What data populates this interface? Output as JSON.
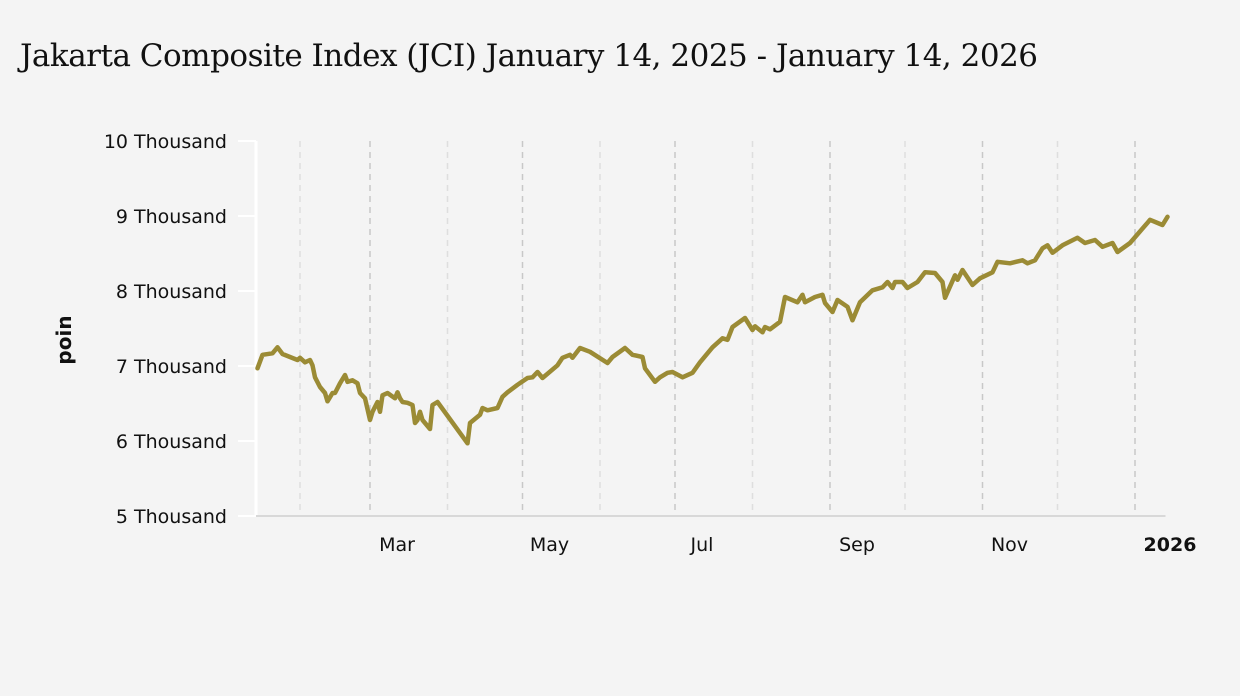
{
  "chart_data": {
    "type": "line",
    "title": "Jakarta Composite Index (JCI) January 14, 2025 - January 14, 2026",
    "xlabel": "",
    "ylabel": "poin",
    "x_units": "days since 2025-01-01",
    "xlim": [
      13,
      378
    ],
    "ylim": [
      5000,
      10000
    ],
    "y_ticks": [
      5000,
      6000,
      7000,
      8000,
      9000,
      10000
    ],
    "y_tick_labels": [
      "5 Thousand",
      "6 Thousand",
      "7 Thousand",
      "8 Thousand",
      "9 Thousand",
      "10 Thousand"
    ],
    "x_ticks": [
      {
        "day": 59,
        "label": "Mar",
        "bold": false
      },
      {
        "day": 120,
        "label": "May",
        "bold": false
      },
      {
        "day": 181,
        "label": "Jul",
        "bold": false
      },
      {
        "day": 243,
        "label": "Sep",
        "bold": false
      },
      {
        "day": 304,
        "label": "Nov",
        "bold": false
      },
      {
        "day": 365,
        "label": "2026",
        "bold": true
      }
    ],
    "grid_days": [
      31,
      59,
      90,
      120,
      151,
      181,
      212,
      243,
      273,
      304,
      334,
      365
    ],
    "grid": "vertical dashed",
    "line_color": "#9b8b35",
    "series": [
      {
        "name": "JCI",
        "points": [
          [
            14,
            6970
          ],
          [
            16,
            7150
          ],
          [
            20,
            7170
          ],
          [
            22,
            7250
          ],
          [
            24,
            7160
          ],
          [
            30,
            7080
          ],
          [
            31,
            7110
          ],
          [
            33,
            7050
          ],
          [
            35,
            7080
          ],
          [
            36,
            7010
          ],
          [
            37,
            6850
          ],
          [
            39,
            6720
          ],
          [
            41,
            6640
          ],
          [
            42,
            6530
          ],
          [
            44,
            6640
          ],
          [
            45,
            6640
          ],
          [
            47,
            6770
          ],
          [
            49,
            6880
          ],
          [
            50,
            6790
          ],
          [
            52,
            6810
          ],
          [
            54,
            6770
          ],
          [
            55,
            6640
          ],
          [
            57,
            6570
          ],
          [
            59,
            6280
          ],
          [
            60,
            6390
          ],
          [
            62,
            6520
          ],
          [
            63,
            6390
          ],
          [
            64,
            6610
          ],
          [
            66,
            6640
          ],
          [
            69,
            6570
          ],
          [
            70,
            6650
          ],
          [
            71,
            6570
          ],
          [
            72,
            6520
          ],
          [
            74,
            6510
          ],
          [
            76,
            6480
          ],
          [
            77,
            6240
          ],
          [
            78,
            6280
          ],
          [
            79,
            6390
          ],
          [
            80,
            6280
          ],
          [
            83,
            6160
          ],
          [
            84,
            6480
          ],
          [
            86,
            6520
          ],
          [
            98,
            5970
          ],
          [
            99,
            6240
          ],
          [
            103,
            6350
          ],
          [
            104,
            6440
          ],
          [
            106,
            6410
          ],
          [
            110,
            6440
          ],
          [
            112,
            6590
          ],
          [
            114,
            6650
          ],
          [
            118,
            6750
          ],
          [
            122,
            6840
          ],
          [
            124,
            6850
          ],
          [
            126,
            6920
          ],
          [
            128,
            6840
          ],
          [
            134,
            7010
          ],
          [
            136,
            7110
          ],
          [
            139,
            7150
          ],
          [
            140,
            7110
          ],
          [
            143,
            7240
          ],
          [
            147,
            7190
          ],
          [
            154,
            7040
          ],
          [
            156,
            7120
          ],
          [
            161,
            7240
          ],
          [
            164,
            7150
          ],
          [
            168,
            7120
          ],
          [
            169,
            6970
          ],
          [
            173,
            6790
          ],
          [
            175,
            6850
          ],
          [
            178,
            6910
          ],
          [
            180,
            6920
          ],
          [
            184,
            6850
          ],
          [
            188,
            6910
          ],
          [
            191,
            7050
          ],
          [
            196,
            7250
          ],
          [
            200,
            7370
          ],
          [
            202,
            7350
          ],
          [
            204,
            7520
          ],
          [
            209,
            7640
          ],
          [
            212,
            7480
          ],
          [
            213,
            7530
          ],
          [
            216,
            7450
          ],
          [
            217,
            7520
          ],
          [
            219,
            7490
          ],
          [
            223,
            7590
          ],
          [
            225,
            7920
          ],
          [
            230,
            7850
          ],
          [
            232,
            7950
          ],
          [
            233,
            7850
          ],
          [
            237,
            7920
          ],
          [
            240,
            7950
          ],
          [
            241,
            7840
          ],
          [
            244,
            7720
          ],
          [
            246,
            7880
          ],
          [
            250,
            7790
          ],
          [
            252,
            7610
          ],
          [
            255,
            7850
          ],
          [
            260,
            8010
          ],
          [
            264,
            8050
          ],
          [
            266,
            8120
          ],
          [
            268,
            8040
          ],
          [
            269,
            8120
          ],
          [
            272,
            8120
          ],
          [
            274,
            8040
          ],
          [
            278,
            8120
          ],
          [
            281,
            8250
          ],
          [
            285,
            8240
          ],
          [
            288,
            8120
          ],
          [
            289,
            7910
          ],
          [
            293,
            8210
          ],
          [
            294,
            8150
          ],
          [
            296,
            8280
          ],
          [
            300,
            8080
          ],
          [
            303,
            8170
          ],
          [
            308,
            8250
          ],
          [
            310,
            8390
          ],
          [
            315,
            8370
          ],
          [
            320,
            8410
          ],
          [
            322,
            8370
          ],
          [
            325,
            8410
          ],
          [
            328,
            8570
          ],
          [
            330,
            8610
          ],
          [
            332,
            8510
          ],
          [
            336,
            8610
          ],
          [
            342,
            8710
          ],
          [
            345,
            8640
          ],
          [
            349,
            8680
          ],
          [
            352,
            8590
          ],
          [
            356,
            8640
          ],
          [
            358,
            8520
          ],
          [
            363,
            8640
          ],
          [
            370,
            8910
          ],
          [
            371,
            8950
          ],
          [
            376,
            8880
          ],
          [
            378,
            8990
          ]
        ]
      }
    ]
  }
}
